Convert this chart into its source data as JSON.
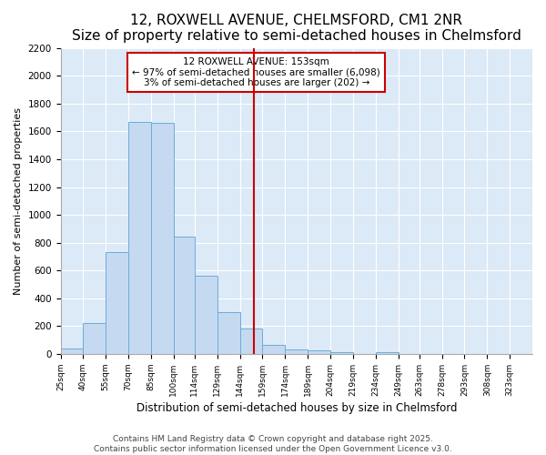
{
  "title": "12, ROXWELL AVENUE, CHELMSFORD, CM1 2NR",
  "subtitle": "Size of property relative to semi-detached houses in Chelmsford",
  "xlabel": "Distribution of semi-detached houses by size in Chelmsford",
  "ylabel": "Number of semi-detached properties",
  "bar_labels": [
    "25sqm",
    "40sqm",
    "55sqm",
    "70sqm",
    "85sqm",
    "100sqm",
    "114sqm",
    "129sqm",
    "144sqm",
    "159sqm",
    "174sqm",
    "189sqm",
    "204sqm",
    "219sqm",
    "234sqm",
    "249sqm",
    "263sqm",
    "278sqm",
    "293sqm",
    "308sqm",
    "323sqm"
  ],
  "bar_heights": [
    40,
    225,
    730,
    1670,
    1660,
    845,
    560,
    300,
    180,
    65,
    35,
    25,
    15,
    0,
    10,
    0,
    0,
    0,
    0,
    0,
    0
  ],
  "bar_color": "#c5d9f1",
  "bar_edge_color": "#6baed6",
  "bin_edges": [
    25,
    40,
    55,
    70,
    85,
    100,
    114,
    129,
    144,
    159,
    174,
    189,
    204,
    219,
    234,
    249,
    263,
    278,
    293,
    308,
    323,
    338
  ],
  "ylim": [
    0,
    2200
  ],
  "yticks": [
    0,
    200,
    400,
    600,
    800,
    1000,
    1200,
    1400,
    1600,
    1800,
    2000,
    2200
  ],
  "vline_x": 153,
  "vline_color": "#cc0000",
  "annotation_title": "12 ROXWELL AVENUE: 153sqm",
  "annotation_line1": "← 97% of semi-detached houses are smaller (6,098)",
  "annotation_line2": "3% of semi-detached houses are larger (202) →",
  "annotation_box_facecolor": "#ffffff",
  "annotation_box_edgecolor": "#cc0000",
  "plot_bg_color": "#dce9f7",
  "fig_bg_color": "#ffffff",
  "grid_color": "#ffffff",
  "footer_line1": "Contains HM Land Registry data © Crown copyright and database right 2025.",
  "footer_line2": "Contains public sector information licensed under the Open Government Licence v3.0.",
  "title_fontsize": 11,
  "subtitle_fontsize": 9,
  "annotation_fontsize": 7.5,
  "footer_fontsize": 6.5,
  "ylabel_fontsize": 8,
  "xlabel_fontsize": 8.5
}
